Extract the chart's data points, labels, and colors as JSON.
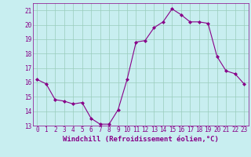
{
  "x": [
    0,
    1,
    2,
    3,
    4,
    5,
    6,
    7,
    8,
    9,
    10,
    11,
    12,
    13,
    14,
    15,
    16,
    17,
    18,
    19,
    20,
    21,
    22,
    23
  ],
  "y": [
    16.2,
    15.9,
    14.8,
    14.7,
    14.5,
    14.6,
    13.5,
    13.1,
    13.1,
    14.1,
    16.2,
    18.8,
    18.9,
    19.8,
    20.2,
    21.1,
    20.7,
    20.2,
    20.2,
    20.1,
    17.8,
    16.8,
    16.6,
    15.9
  ],
  "line_color": "#880088",
  "marker": "D",
  "marker_size": 2.0,
  "bg_color": "#C8EEF0",
  "grid_color": "#99CCBB",
  "xlabel": "Windchill (Refroidissement éolien,°C)",
  "xlabel_color": "#880088",
  "ylim": [
    13,
    21.5
  ],
  "xlim": [
    -0.5,
    23.5
  ],
  "yticks": [
    13,
    14,
    15,
    16,
    17,
    18,
    19,
    20,
    21
  ],
  "xticks": [
    0,
    1,
    2,
    3,
    4,
    5,
    6,
    7,
    8,
    9,
    10,
    11,
    12,
    13,
    14,
    15,
    16,
    17,
    18,
    19,
    20,
    21,
    22,
    23
  ],
  "tick_color": "#880088",
  "tick_label_fontsize": 5.5,
  "xlabel_fontsize": 6.5,
  "line_width": 0.8
}
